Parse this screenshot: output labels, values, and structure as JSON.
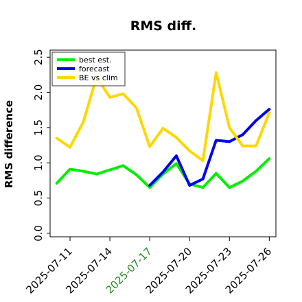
{
  "chart_data": {
    "type": "line",
    "title": "RMS diff.",
    "xlabel": "",
    "ylabel": "RMS difference",
    "ylim": [
      -0.05,
      2.6
    ],
    "xlim": [
      "2025-07-09T12:00",
      "2025-07-26T12:00"
    ],
    "x": [
      "2025-07-10",
      "2025-07-11",
      "2025-07-12",
      "2025-07-13",
      "2025-07-14",
      "2025-07-15",
      "2025-07-16",
      "2025-07-17",
      "2025-07-18",
      "2025-07-19",
      "2025-07-20",
      "2025-07-21",
      "2025-07-22",
      "2025-07-23",
      "2025-07-24",
      "2025-07-25",
      "2025-07-26"
    ],
    "xticks": [
      {
        "date": "2025-07-11",
        "label": "2025-07-11",
        "color": "#000000"
      },
      {
        "date": "2025-07-14",
        "label": "2025-07-14",
        "color": "#000000"
      },
      {
        "date": "2025-07-17",
        "label": "2025-07-17",
        "color": "#228b22"
      },
      {
        "date": "2025-07-20",
        "label": "2025-07-20",
        "color": "#000000"
      },
      {
        "date": "2025-07-23",
        "label": "2025-07-23",
        "color": "#000000"
      },
      {
        "date": "2025-07-26",
        "label": "2025-07-26",
        "color": "#000000"
      }
    ],
    "yticks": [
      0.0,
      0.5,
      1.0,
      1.5,
      2.0,
      2.5
    ],
    "ytick_labels": [
      "0.0",
      "0.5",
      "1.0",
      "1.5",
      "2.0",
      "2.5"
    ],
    "grid": false,
    "legend_position": "top-left",
    "series": [
      {
        "name": "best est.",
        "color": "#00ee00",
        "values": [
          0.71,
          0.91,
          0.88,
          0.84,
          0.9,
          0.96,
          0.83,
          0.65,
          0.84,
          0.99,
          0.7,
          0.65,
          0.85,
          0.65,
          0.74,
          0.88,
          1.06
        ]
      },
      {
        "name": "forecast",
        "color": "#0000ee",
        "values": [
          null,
          null,
          null,
          null,
          null,
          null,
          null,
          0.68,
          0.87,
          1.1,
          0.68,
          0.77,
          1.32,
          1.3,
          1.4,
          1.6,
          1.76
        ]
      },
      {
        "name": "BE vs clim",
        "color": "#ffd700",
        "values": [
          1.35,
          1.22,
          1.58,
          2.22,
          1.93,
          1.98,
          1.78,
          1.23,
          1.49,
          1.36,
          1.17,
          1.03,
          2.28,
          1.5,
          1.24,
          1.24,
          1.71
        ]
      }
    ]
  }
}
